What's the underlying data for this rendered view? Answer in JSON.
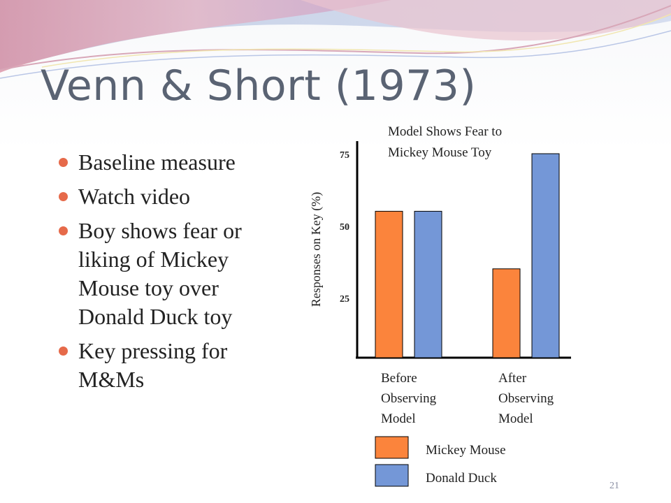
{
  "slide": {
    "title": "Venn & Short (1973)",
    "bullets": [
      "Baseline measure",
      "Watch video",
      "Boy shows fear or liking of Mickey Mouse toy over Donald Duck toy",
      "Key pressing for M&Ms"
    ],
    "page_number": "21"
  },
  "colors": {
    "title": "#5a6373",
    "bullet": "#e66a4a",
    "mickey": "#fb843c",
    "donald": "#7497d7"
  },
  "chart_data": {
    "type": "bar",
    "title": "Model Shows Fear to Mickey Mouse Toy",
    "title_lines": [
      "Model Shows Fear to",
      "Mickey Mouse Toy"
    ],
    "ylabel": "Responses on Key (%)",
    "yticks": [
      25,
      50,
      75
    ],
    "ylim": [
      0,
      80
    ],
    "categories": [
      "Before Observing Model",
      "After Observing Model"
    ],
    "category_lines": [
      [
        "Before",
        "Observing",
        "Model"
      ],
      [
        "After",
        "Observing",
        "Model"
      ]
    ],
    "series": [
      {
        "name": "Mickey Mouse",
        "color": "#fb843c",
        "values": [
          55,
          35
        ]
      },
      {
        "name": "Donald Duck",
        "color": "#7497d7",
        "values": [
          55,
          75
        ]
      }
    ],
    "grid": false,
    "legend": "bottom"
  }
}
